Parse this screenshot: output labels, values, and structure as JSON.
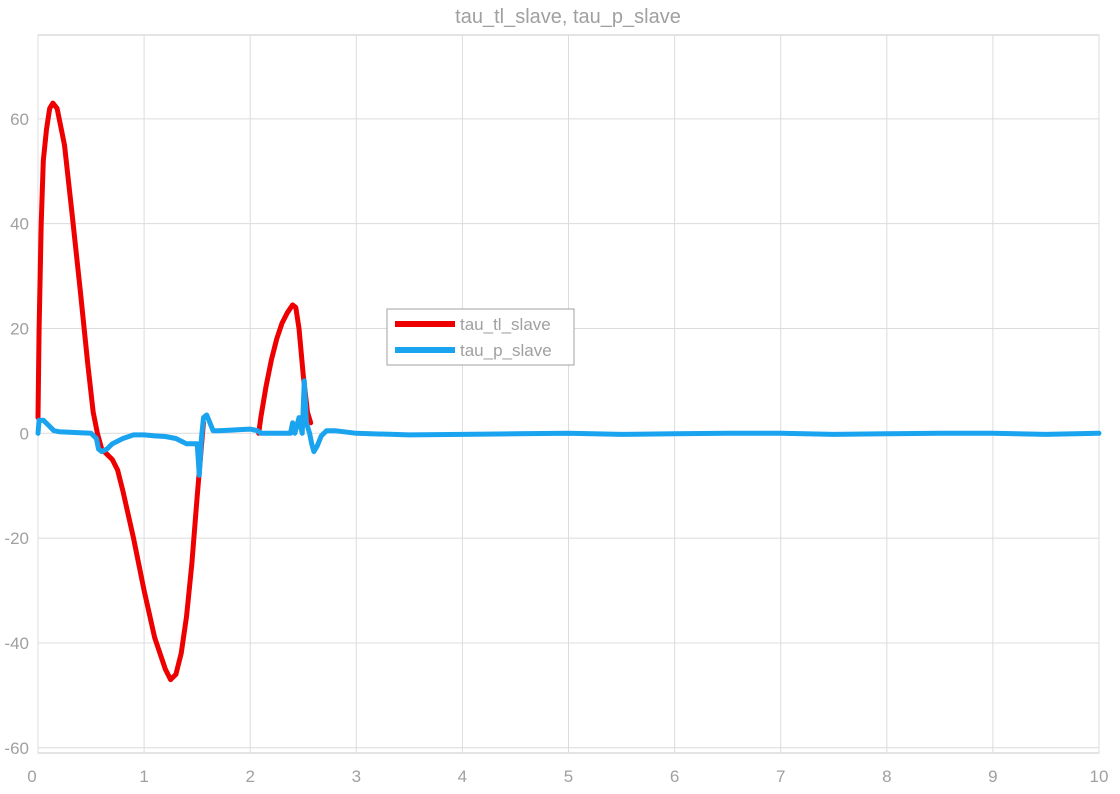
{
  "chart_data": {
    "type": "line",
    "title": "tau_tl_slave, tau_p_slave",
    "xlabel": "",
    "ylabel": "",
    "xlim": [
      0,
      10
    ],
    "ylim": [
      -61,
      76
    ],
    "xticks": [
      0,
      1,
      2,
      3,
      4,
      5,
      6,
      7,
      8,
      9,
      10
    ],
    "yticks": [
      -60,
      -40,
      -20,
      0,
      20,
      40,
      60
    ],
    "grid": true,
    "legend_position": "center-left",
    "series": [
      {
        "name": "tau_tl_slave",
        "color": "#ee0000",
        "points": [
          [
            0,
            3
          ],
          [
            0.01,
            20
          ],
          [
            0.03,
            40
          ],
          [
            0.05,
            52
          ],
          [
            0.08,
            58
          ],
          [
            0.11,
            62
          ],
          [
            0.14,
            63
          ],
          [
            0.18,
            62
          ],
          [
            0.25,
            55
          ],
          [
            0.32,
            42
          ],
          [
            0.4,
            27
          ],
          [
            0.47,
            13
          ],
          [
            0.52,
            4
          ],
          [
            0.56,
            0
          ],
          [
            0.6,
            -3
          ],
          [
            0.65,
            -4
          ],
          [
            0.7,
            -5
          ],
          [
            0.75,
            -7
          ],
          [
            0.8,
            -11
          ],
          [
            0.9,
            -20
          ],
          [
            1.0,
            -30
          ],
          [
            1.1,
            -39
          ],
          [
            1.2,
            -45
          ],
          [
            1.25,
            -47
          ],
          [
            1.3,
            -46
          ],
          [
            1.35,
            -42
          ],
          [
            1.4,
            -35
          ],
          [
            1.45,
            -25
          ],
          [
            1.5,
            -12
          ],
          [
            1.53,
            -5
          ],
          [
            1.55,
            0
          ],
          [
            1.56,
            2
          ]
        ],
        "points_2": [
          [
            2.08,
            0
          ],
          [
            2.1,
            3
          ],
          [
            2.15,
            9
          ],
          [
            2.2,
            14
          ],
          [
            2.25,
            18
          ],
          [
            2.3,
            21
          ],
          [
            2.35,
            23
          ],
          [
            2.4,
            24.5
          ],
          [
            2.43,
            24
          ],
          [
            2.46,
            20
          ],
          [
            2.5,
            11
          ],
          [
            2.54,
            4
          ],
          [
            2.57,
            2
          ]
        ]
      },
      {
        "name": "tau_p_slave",
        "color": "#1aa3ef",
        "points": [
          [
            0,
            0
          ],
          [
            0.01,
            2.5
          ],
          [
            0.05,
            2.5
          ],
          [
            0.1,
            1.5
          ],
          [
            0.15,
            0.5
          ],
          [
            0.2,
            0.3
          ],
          [
            0.3,
            0.2
          ],
          [
            0.4,
            0.1
          ],
          [
            0.5,
            0
          ],
          [
            0.55,
            -1
          ],
          [
            0.57,
            -3
          ],
          [
            0.6,
            -3.5
          ],
          [
            0.65,
            -3
          ],
          [
            0.7,
            -2
          ],
          [
            0.8,
            -1
          ],
          [
            0.9,
            -0.3
          ],
          [
            1.0,
            -0.3
          ],
          [
            1.1,
            -0.5
          ],
          [
            1.2,
            -0.6
          ],
          [
            1.3,
            -1
          ],
          [
            1.4,
            -2
          ],
          [
            1.48,
            -2
          ],
          [
            1.5,
            -2
          ],
          [
            1.52,
            -8
          ],
          [
            1.54,
            -1
          ],
          [
            1.56,
            3
          ],
          [
            1.59,
            3.5
          ],
          [
            1.62,
            2
          ],
          [
            1.65,
            0.5
          ],
          [
            1.7,
            0.5
          ],
          [
            1.8,
            0.6
          ],
          [
            1.9,
            0.7
          ],
          [
            2.0,
            0.8
          ],
          [
            2.07,
            0.5
          ],
          [
            2.1,
            0
          ],
          [
            2.3,
            0
          ],
          [
            2.38,
            0
          ],
          [
            2.4,
            2
          ],
          [
            2.42,
            0
          ],
          [
            2.46,
            3
          ],
          [
            2.49,
            0
          ],
          [
            2.51,
            10
          ],
          [
            2.53,
            2
          ],
          [
            2.56,
            0
          ],
          [
            2.58,
            -2
          ],
          [
            2.6,
            -3.5
          ],
          [
            2.63,
            -2.5
          ],
          [
            2.67,
            -0.5
          ],
          [
            2.72,
            0.5
          ],
          [
            2.8,
            0.5
          ],
          [
            3.0,
            0
          ],
          [
            3.5,
            -0.3
          ],
          [
            4.0,
            -0.2
          ],
          [
            4.5,
            -0.1
          ],
          [
            5.0,
            0
          ],
          [
            5.5,
            -0.2
          ],
          [
            6.0,
            -0.1
          ],
          [
            6.5,
            0
          ],
          [
            7.0,
            0
          ],
          [
            7.5,
            -0.2
          ],
          [
            8.0,
            -0.1
          ],
          [
            8.5,
            0
          ],
          [
            9.0,
            0
          ],
          [
            9.5,
            -0.2
          ],
          [
            10.0,
            0
          ]
        ]
      }
    ]
  }
}
